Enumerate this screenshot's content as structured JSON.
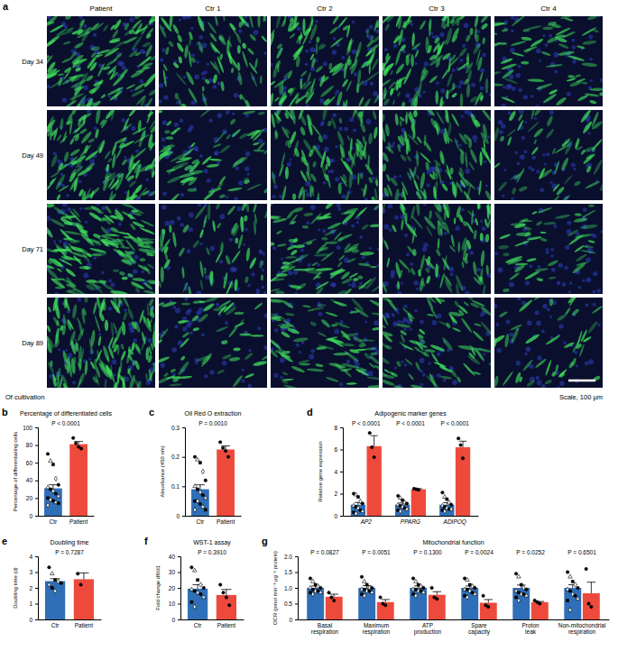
{
  "panel_a": {
    "label": "a",
    "columns": [
      "Patient",
      "Ctr 1",
      "Ctr 2",
      "Ctr 3",
      "Ctr 4"
    ],
    "rows": [
      "Day 34",
      "Day 49",
      "Day 71",
      "Day 89"
    ],
    "footer_left": "Of cultivation",
    "footer_right": "Scale, 100 µm"
  },
  "chart_data": [
    {
      "type": "bar",
      "label": "b",
      "title": "Percentage of differentiated cells",
      "y_label": "Percentage of differentiating cells",
      "categories": [
        "Ctr",
        "Patient"
      ],
      "values": [
        31,
        81
      ],
      "errors": [
        4,
        3
      ],
      "colors": [
        "#2f6fb8",
        "#ee4a3c"
      ],
      "points": [
        [
          70,
          62,
          58,
          42,
          35,
          32,
          30,
          28,
          25,
          22,
          20,
          18,
          17,
          15,
          14,
          12
        ],
        [
          88,
          82,
          78,
          76
        ]
      ],
      "ylim": [
        0,
        100
      ],
      "yticks": [
        0,
        20,
        40,
        60,
        80,
        100
      ],
      "annotations": [
        "P < 0.0001"
      ]
    },
    {
      "type": "bar",
      "label": "c",
      "title": "Oil Red O extraction",
      "y_label": "Absorbance (450 nm)",
      "categories": [
        "Ctr",
        "Patient"
      ],
      "values": [
        0.09,
        0.225
      ],
      "errors": [
        0.015,
        0.012
      ],
      "colors": [
        "#2f6fb8",
        "#ee4a3c"
      ],
      "points": [
        [
          0.2,
          0.19,
          0.18,
          0.15,
          0.12,
          0.1,
          0.09,
          0.08,
          0.07,
          0.06,
          0.05,
          0.05,
          0.04,
          0.03,
          0.02,
          0.02
        ],
        [
          0.25,
          0.23,
          0.22,
          0.2
        ]
      ],
      "ylim": [
        0,
        0.3
      ],
      "yticks": [
        0,
        0.1,
        0.2,
        0.3
      ],
      "annotations": [
        "P = 0.0010"
      ]
    },
    {
      "type": "bar",
      "label": "d",
      "title": "Adipogenic marker genes",
      "y_label": "Relative gene expression",
      "categories": [
        "AP2",
        "PPARG",
        "ADIPOQ"
      ],
      "series": [
        {
          "color": "#2f6fb8",
          "values": [
            1.0,
            1.0,
            1.0
          ],
          "errors": [
            0.2,
            0.15,
            0.18
          ],
          "points": [
            [
              2.0,
              1.9,
              1.7,
              1.3,
              1.1,
              0.9,
              0.8,
              0.7,
              0.5,
              0.4,
              0.3,
              0.2
            ],
            [
              1.8,
              1.6,
              1.4,
              1.2,
              1.1,
              1.0,
              0.9,
              0.8,
              0.7,
              0.6,
              0.5,
              0.4
            ],
            [
              2.1,
              1.7,
              1.5,
              1.2,
              1.0,
              0.9,
              0.8,
              0.7,
              0.6,
              0.6,
              0.5,
              0.4
            ]
          ]
        },
        {
          "color": "#ee4a3c",
          "values": [
            6.3,
            2.4,
            6.2
          ],
          "errors": [
            0.95,
            0.05,
            0.55
          ],
          "points": [
            [
              7.5,
              6.2,
              5.3
            ],
            [
              2.45,
              2.4,
              2.35
            ],
            [
              7.0,
              6.4,
              5.2
            ]
          ]
        }
      ],
      "ylim": [
        0,
        8
      ],
      "yticks": [
        0,
        2,
        4,
        6,
        8
      ],
      "annotations": [
        "P < 0.0001",
        "P < 0.0001",
        "P < 0.0001"
      ]
    },
    {
      "type": "bar",
      "label": "e",
      "title": "Doubling time",
      "y_label": "Doubling time (d)",
      "categories": [
        "Ctr",
        "Patient"
      ],
      "values": [
        2.43,
        2.55
      ],
      "errors": [
        0.15,
        0.4
      ],
      "colors": [
        "#2f6fb8",
        "#ee4a3c"
      ],
      "points": [
        [
          3.3,
          2.9,
          2.5,
          2.4,
          2.3,
          2.2,
          2.0,
          1.8
        ],
        [
          2.9,
          2.2
        ]
      ],
      "ylim": [
        0,
        4
      ],
      "yticks": [
        0,
        1,
        2,
        3,
        4
      ],
      "annotations": [
        "P = 0.7287"
      ]
    },
    {
      "type": "bar",
      "label": "f",
      "title": "WST-1 assay",
      "y_label": "Fold change d8/d1",
      "categories": [
        "Ctr",
        "Patient"
      ],
      "values": [
        19.5,
        15.5
      ],
      "errors": [
        2.5,
        3.5
      ],
      "colors": [
        "#2f6fb8",
        "#ee4a3c"
      ],
      "points": [
        [
          33,
          31,
          25,
          22,
          20,
          19,
          18,
          17,
          16,
          14,
          11,
          8
        ],
        [
          22,
          17,
          14,
          9
        ]
      ],
      "ylim": [
        0,
        40
      ],
      "yticks": [
        0,
        10,
        20,
        30,
        40
      ],
      "annotations": [
        "P = 0.3910"
      ]
    },
    {
      "type": "bar",
      "label": "g",
      "title": "Mitochondrial function",
      "y_label": "OCR (pmol min⁻¹ µg⁻¹ protein)",
      "categories": [
        "Basal respiration",
        "Maximum respiration",
        "ATP production",
        "Spare capacity",
        "Proton leak",
        "Non-mitochondrial respiration"
      ],
      "series": [
        {
          "color": "#2f6fb8",
          "values": [
            1.0,
            1.0,
            1.0,
            1.0,
            1.0,
            1.0
          ],
          "errors": [
            0.06,
            0.07,
            0.06,
            0.06,
            0.09,
            0.1
          ],
          "points": [
            [
              1.3,
              1.2,
              1.1,
              1.05,
              1.0,
              1.0,
              0.95,
              0.9,
              0.9,
              0.85,
              0.85,
              0.8
            ],
            [
              1.35,
              1.2,
              1.1,
              1.0,
              1.0,
              0.95,
              0.95,
              0.9,
              0.9,
              0.85,
              0.8,
              0.75
            ],
            [
              1.3,
              1.2,
              1.1,
              1.05,
              1.0,
              0.95,
              0.95,
              0.9,
              0.9,
              0.85,
              0.8,
              0.75
            ],
            [
              1.3,
              1.25,
              1.1,
              1.05,
              1.0,
              0.95,
              0.95,
              0.9,
              0.85,
              0.8,
              0.75,
              0.7
            ],
            [
              1.45,
              1.35,
              1.1,
              1.0,
              0.95,
              0.9,
              0.85,
              0.8,
              0.8,
              0.75,
              0.7,
              0.6
            ],
            [
              1.5,
              1.35,
              1.2,
              1.1,
              1.0,
              0.95,
              0.9,
              0.8,
              0.75,
              0.65,
              0.6,
              0.3
            ]
          ]
        },
        {
          "color": "#ee4a3c",
          "values": [
            0.72,
            0.55,
            0.78,
            0.53,
            0.55,
            0.83
          ],
          "errors": [
            0.08,
            0.08,
            0.1,
            0.1,
            0.02,
            0.35
          ],
          "points": [
            [
              0.85,
              0.7,
              0.6
            ],
            [
              0.7,
              0.5,
              0.45
            ],
            [
              1.0,
              0.7,
              0.65
            ],
            [
              0.75,
              0.45,
              0.4
            ],
            [
              0.6,
              0.55,
              0.5
            ],
            [
              1.6,
              0.5,
              0.4
            ]
          ]
        }
      ],
      "ylim": [
        0,
        2
      ],
      "yticks": [
        0,
        0.5,
        {
          "value": 1,
          "label": "1.0"
        },
        1.5,
        {
          "value": 2,
          "label": "2.0"
        }
      ],
      "annotations": [
        "P = 0.0827",
        "P = 0.0051",
        "P = 0.1300",
        "P = 0.0024",
        "P = 0.0252",
        "P = 0.6501"
      ]
    }
  ]
}
